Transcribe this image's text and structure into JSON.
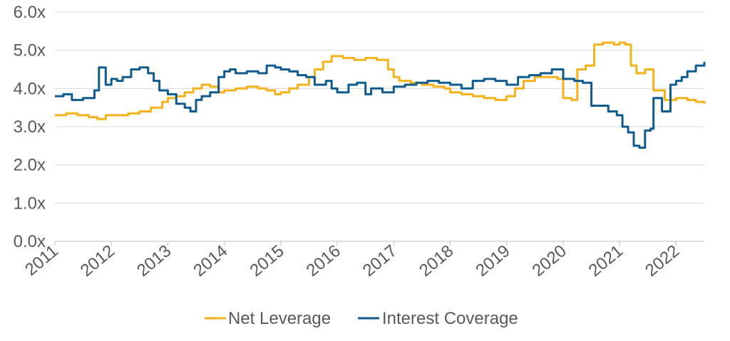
{
  "chart_data": {
    "type": "line",
    "title": "",
    "xlabel": "",
    "ylabel": "",
    "ylim": [
      0,
      6
    ],
    "xlim": [
      2011,
      2022.5
    ],
    "grid": true,
    "legend_position": "bottom",
    "y_ticks": [
      "0.0x",
      "1.0x",
      "2.0x",
      "3.0x",
      "4.0x",
      "5.0x",
      "6.0x"
    ],
    "x_ticks": [
      "2011",
      "2012",
      "2013",
      "2014",
      "2015",
      "2016",
      "2017",
      "2018",
      "2019",
      "2020",
      "2021",
      "2022"
    ],
    "series": [
      {
        "name": "Net Leverage",
        "color": "#F5B21B",
        "x": [
          2011.0,
          2011.2,
          2011.4,
          2011.6,
          2011.75,
          2011.9,
          2012.1,
          2012.3,
          2012.5,
          2012.7,
          2012.9,
          2013.0,
          2013.15,
          2013.3,
          2013.45,
          2013.6,
          2013.75,
          2013.9,
          2014.0,
          2014.2,
          2014.4,
          2014.6,
          2014.75,
          2014.9,
          2015.0,
          2015.15,
          2015.3,
          2015.5,
          2015.6,
          2015.75,
          2015.9,
          2016.1,
          2016.3,
          2016.5,
          2016.7,
          2016.9,
          2017.0,
          2017.1,
          2017.3,
          2017.5,
          2017.7,
          2017.9,
          2018.0,
          2018.2,
          2018.4,
          2018.6,
          2018.8,
          2019.0,
          2019.15,
          2019.3,
          2019.5,
          2019.7,
          2019.9,
          2020.0,
          2020.15,
          2020.25,
          2020.4,
          2020.55,
          2020.7,
          2020.9,
          2021.0,
          2021.1,
          2021.2,
          2021.3,
          2021.45,
          2021.6,
          2021.8,
          2022.0,
          2022.2,
          2022.35,
          2022.5
        ],
        "values": [
          3.3,
          3.35,
          3.3,
          3.25,
          3.2,
          3.3,
          3.3,
          3.35,
          3.4,
          3.5,
          3.65,
          3.75,
          3.8,
          3.9,
          4.0,
          4.1,
          4.05,
          3.9,
          3.95,
          4.0,
          4.05,
          4.0,
          3.95,
          3.85,
          3.9,
          4.0,
          4.1,
          4.3,
          4.5,
          4.7,
          4.85,
          4.8,
          4.75,
          4.8,
          4.75,
          4.5,
          4.3,
          4.2,
          4.15,
          4.1,
          4.05,
          4.0,
          3.9,
          3.85,
          3.8,
          3.75,
          3.7,
          3.8,
          4.0,
          4.2,
          4.3,
          4.3,
          4.25,
          3.75,
          3.7,
          4.5,
          4.6,
          5.15,
          5.2,
          5.15,
          5.2,
          5.15,
          4.6,
          4.4,
          4.5,
          3.95,
          3.7,
          3.75,
          3.7,
          3.65,
          3.6
        ]
      },
      {
        "name": "Interest Coverage",
        "color": "#0F5B8E",
        "x": [
          2011.0,
          2011.15,
          2011.3,
          2011.5,
          2011.7,
          2011.78,
          2011.9,
          2012.0,
          2012.1,
          2012.2,
          2012.35,
          2012.5,
          2012.65,
          2012.75,
          2012.85,
          2013.0,
          2013.15,
          2013.3,
          2013.4,
          2013.5,
          2013.6,
          2013.75,
          2013.9,
          2014.0,
          2014.1,
          2014.2,
          2014.4,
          2014.6,
          2014.75,
          2014.9,
          2015.0,
          2015.15,
          2015.3,
          2015.45,
          2015.6,
          2015.8,
          2015.9,
          2016.0,
          2016.2,
          2016.35,
          2016.5,
          2016.6,
          2016.8,
          2017.0,
          2017.2,
          2017.4,
          2017.6,
          2017.8,
          2018.0,
          2018.2,
          2018.4,
          2018.6,
          2018.8,
          2019.0,
          2019.2,
          2019.4,
          2019.6,
          2019.8,
          2020.0,
          2020.2,
          2020.35,
          2020.5,
          2020.65,
          2020.8,
          2020.95,
          2021.05,
          2021.15,
          2021.25,
          2021.35,
          2021.45,
          2021.55,
          2021.6,
          2021.75,
          2021.9,
          2022.0,
          2022.1,
          2022.2,
          2022.35,
          2022.5
        ],
        "values": [
          3.8,
          3.85,
          3.7,
          3.75,
          3.95,
          4.55,
          4.1,
          4.25,
          4.2,
          4.3,
          4.5,
          4.55,
          4.4,
          4.2,
          3.95,
          3.85,
          3.6,
          3.5,
          3.4,
          3.7,
          3.8,
          3.9,
          4.3,
          4.45,
          4.5,
          4.4,
          4.45,
          4.4,
          4.6,
          4.55,
          4.5,
          4.45,
          4.35,
          4.3,
          4.1,
          4.2,
          4.0,
          3.9,
          4.1,
          4.15,
          3.85,
          4.0,
          3.9,
          4.05,
          4.1,
          4.15,
          4.2,
          4.15,
          4.1,
          4.0,
          4.2,
          4.25,
          4.2,
          4.1,
          4.3,
          4.35,
          4.4,
          4.5,
          4.25,
          4.2,
          4.15,
          3.55,
          3.55,
          3.4,
          3.3,
          3.0,
          2.85,
          2.5,
          2.45,
          2.9,
          2.95,
          3.75,
          3.4,
          4.1,
          4.2,
          4.3,
          4.45,
          4.6,
          4.7
        ]
      }
    ]
  }
}
